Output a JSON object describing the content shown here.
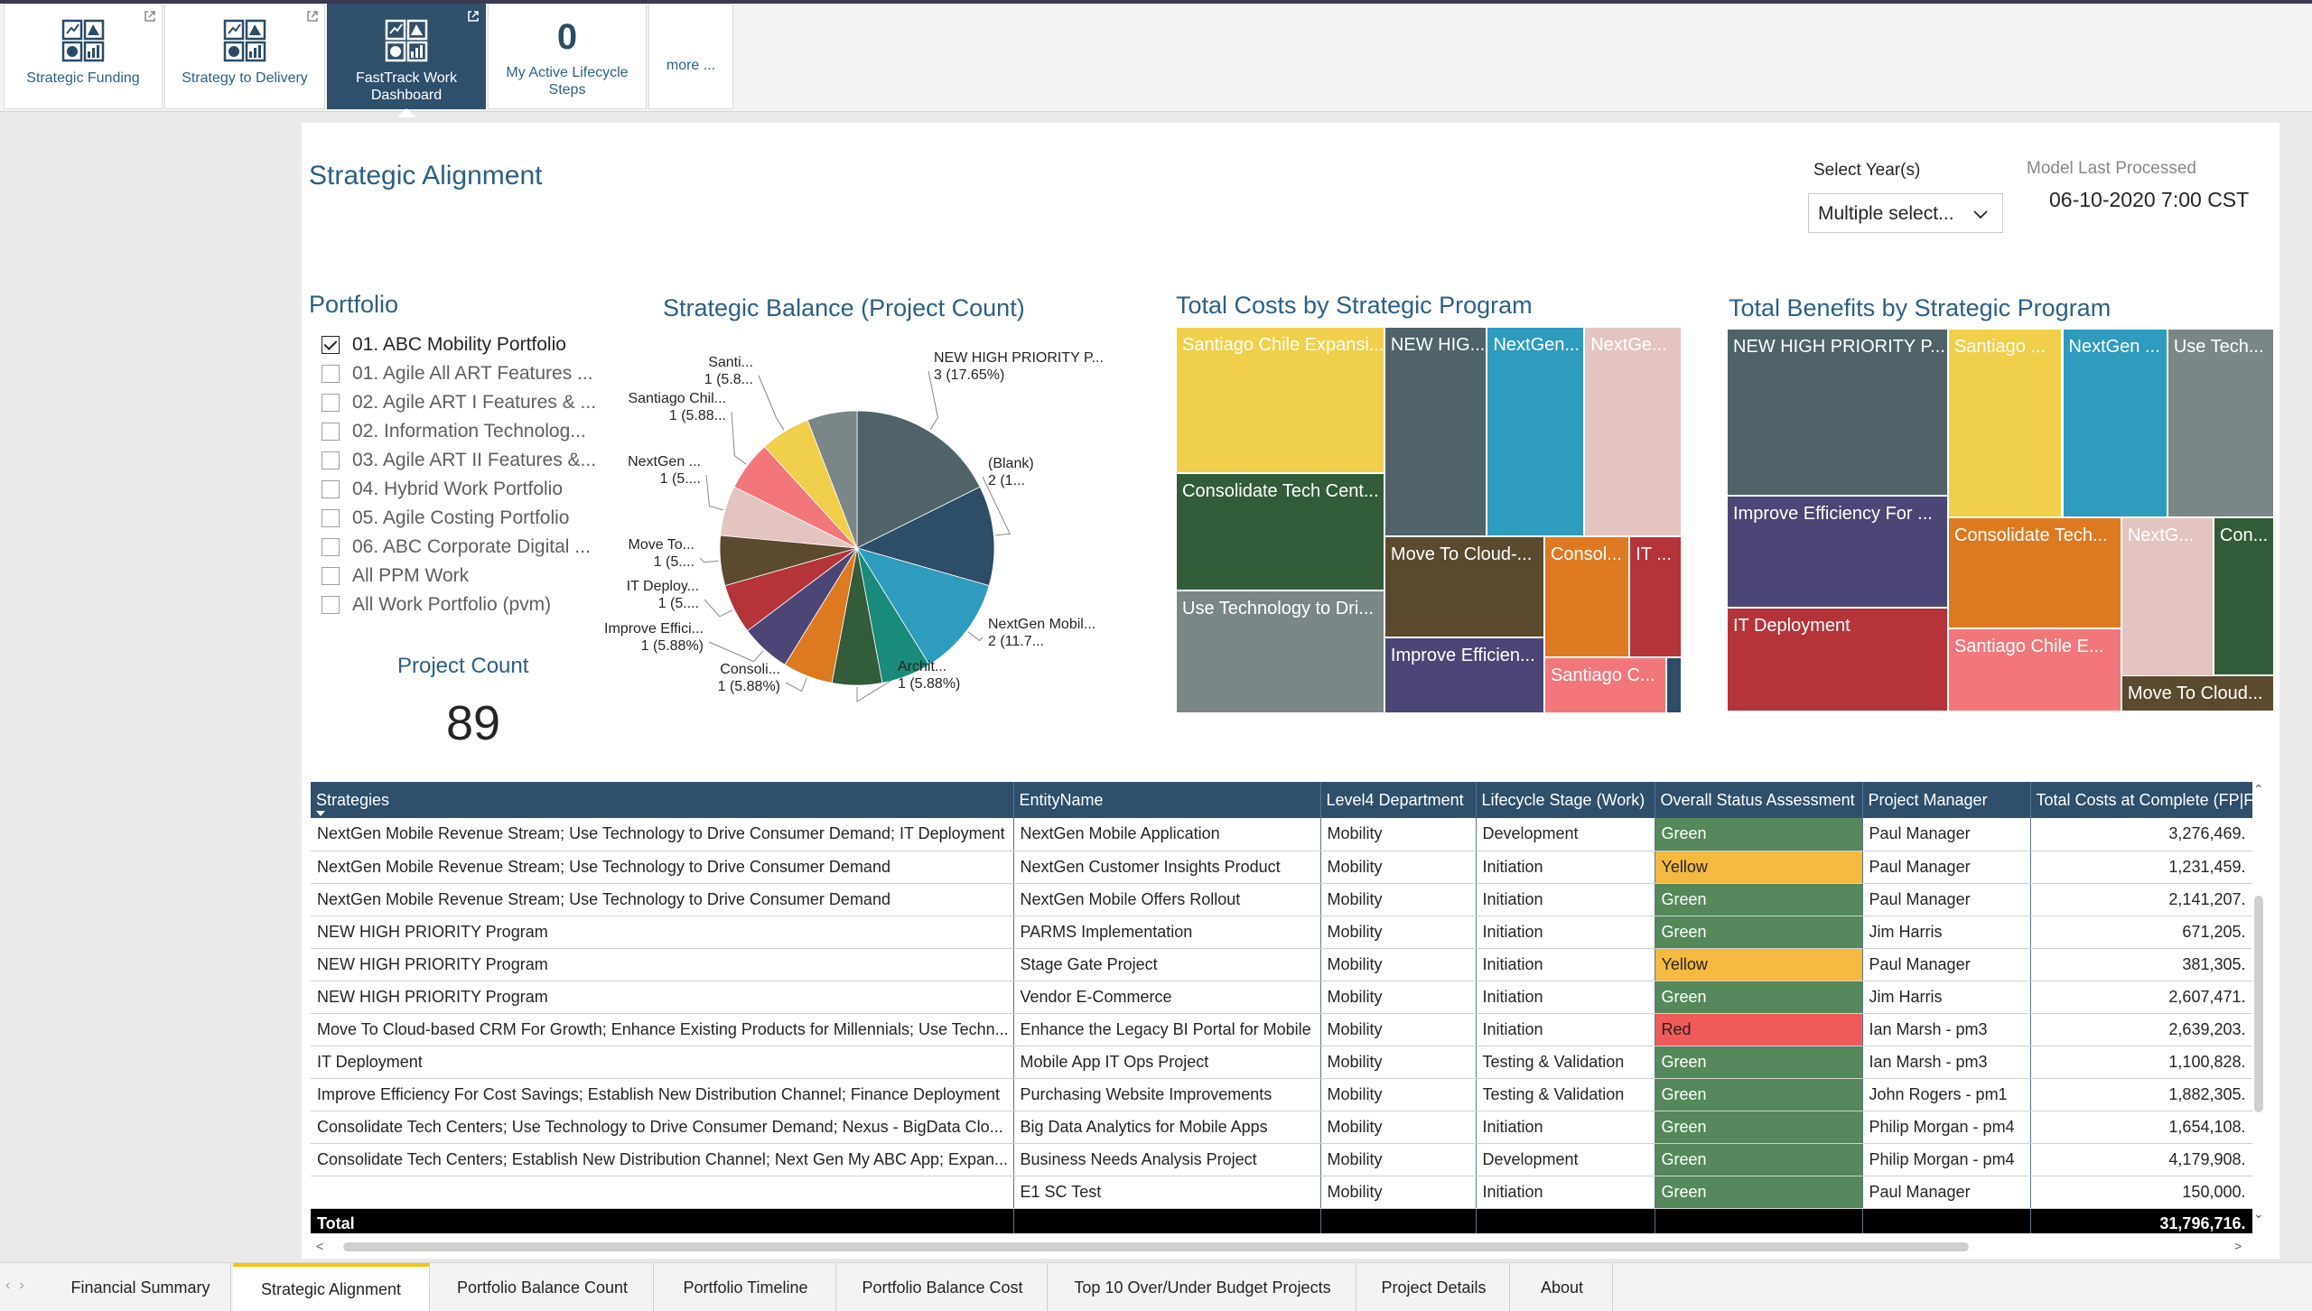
{
  "tiles": [
    {
      "label": "Strategic Funding",
      "icon": "dashboard-icon",
      "external": true
    },
    {
      "label": "Strategy to Delivery",
      "icon": "dashboard-icon",
      "external": true
    },
    {
      "label": "FastTrack Work Dashboard",
      "icon": "dashboard-icon",
      "external": true,
      "active": true
    },
    {
      "count": "0",
      "label": "My Active Lifecycle Steps"
    },
    {
      "label": "more ..."
    }
  ],
  "report": {
    "title": "Strategic Alignment",
    "year_label": "Select Year(s)",
    "year_value": "Multiple select...",
    "model_label": "Model Last Processed",
    "model_value": "06-10-2020 7:00 CST"
  },
  "portfolio": {
    "title": "Portfolio",
    "items": [
      {
        "label": "01. ABC Mobility Portfolio",
        "checked": true
      },
      {
        "label": "01. Agile All ART Features ...",
        "checked": false
      },
      {
        "label": "02. Agile ART I Features & ...",
        "checked": false
      },
      {
        "label": "02. Information Technolog...",
        "checked": false
      },
      {
        "label": "03. Agile ART II Features &...",
        "checked": false
      },
      {
        "label": "04. Hybrid Work Portfolio",
        "checked": false
      },
      {
        "label": "05. Agile Costing Portfolio",
        "checked": false
      },
      {
        "label": "06. ABC Corporate Digital ...",
        "checked": false
      },
      {
        "label": "All PPM Work",
        "checked": false
      },
      {
        "label": "All Work Portfolio (pvm)",
        "checked": false
      }
    ]
  },
  "project_count": {
    "title": "Project Count",
    "value": "89"
  },
  "chart_data": [
    {
      "type": "pie",
      "title": "Strategic Balance (Project Count)",
      "slices": [
        {
          "label": "NEW HIGH PRIORITY P...",
          "value": 3,
          "pct": "17.65%",
          "text": "3 (17.65%)",
          "color": "#4f6368"
        },
        {
          "label": "(Blank)",
          "value": 2,
          "text": "2 (1...",
          "color": "#2e4d66"
        },
        {
          "label": "NextGen Mobil...",
          "value": 2,
          "text": "2 (11.7...",
          "color": "#2f9bbf"
        },
        {
          "label": "",
          "value": 1,
          "color": "#1a8a7a"
        },
        {
          "label": "Archit...",
          "value": 1,
          "text": "1 (5.88%)",
          "color": "#335c3a"
        },
        {
          "label": "Consoli...",
          "value": 1,
          "text": "1 (5.88%)",
          "color": "#dd7a21"
        },
        {
          "label": "Improve Effici...",
          "value": 1,
          "text": "1 (5.88%)",
          "color": "#4b4675"
        },
        {
          "label": "IT Deploy...",
          "value": 1,
          "text": "1 (5....",
          "color": "#b4343a"
        },
        {
          "label": "Move To...",
          "value": 1,
          "text": "1 (5....",
          "color": "#5a4a30"
        },
        {
          "label": "NextGen ...",
          "value": 1,
          "text": "1 (5....",
          "color": "#e2c4c0"
        },
        {
          "label": "Santiago Chil...",
          "value": 1,
          "text": "1 (5.88...",
          "color": "#f2777a"
        },
        {
          "label": "Santi...",
          "value": 1,
          "text": "1 (5.8...",
          "color": "#f1cf4b"
        },
        {
          "label": "",
          "value": 1,
          "color": "#7b8687"
        }
      ]
    },
    {
      "type": "treemap",
      "title": "Total Costs by Strategic Program",
      "cells": [
        {
          "label": "Santiago Chile Expansi...",
          "color": "#f1cf4b"
        },
        {
          "label": "NEW HIG...",
          "color": "#4f6368"
        },
        {
          "label": "NextGen...",
          "color": "#2f9bbf"
        },
        {
          "label": "NextGe...",
          "color": "#e2c4c0"
        },
        {
          "label": "Consolidate Tech Cent...",
          "color": "#335c3a"
        },
        {
          "label": "Move To Cloud-...",
          "color": "#5a4a30"
        },
        {
          "label": "Consol...",
          "color": "#dd7a21"
        },
        {
          "label": "IT ...",
          "color": "#b4343a"
        },
        {
          "label": "Use Technology to Dri...",
          "color": "#7b8687"
        },
        {
          "label": "Improve Efficien...",
          "color": "#4b4675"
        },
        {
          "label": "Santiago C...",
          "color": "#f2777a"
        },
        {
          "label": "",
          "color": "#2e4d66"
        }
      ]
    },
    {
      "type": "treemap",
      "title": "Total Benefits by Strategic Program",
      "cells": [
        {
          "label": "NEW HIGH PRIORITY P...",
          "color": "#4f6368"
        },
        {
          "label": "Santiago ...",
          "color": "#f1cf4b"
        },
        {
          "label": "NextGen ...",
          "color": "#2f9bbf"
        },
        {
          "label": "Use Tech...",
          "color": "#7b8687"
        },
        {
          "label": "Improve Efficiency For ...",
          "color": "#4b4675"
        },
        {
          "label": "Consolidate Tech...",
          "color": "#dd7a21"
        },
        {
          "label": "NextG...",
          "color": "#e2c4c0"
        },
        {
          "label": "Con...",
          "color": "#335c3a"
        },
        {
          "label": "IT Deployment",
          "color": "#b4343a"
        },
        {
          "label": "Santiago Chile E...",
          "color": "#f2777a"
        },
        {
          "label": "Move To Cloud...",
          "color": "#5a4a30"
        }
      ]
    }
  ],
  "table": {
    "headers": [
      "Strategies",
      "EntityName",
      "Level4 Department",
      "Lifecycle Stage (Work)",
      "Overall Status Assessment",
      "Project Manager",
      "Total Costs at Complete (FP|F"
    ],
    "rows": [
      [
        "NextGen Mobile Revenue Stream; Use Technology to Drive Consumer Demand; IT Deployment",
        "NextGen Mobile Application",
        "Mobility",
        "Development",
        "Green",
        "Paul Manager",
        "3,276,469."
      ],
      [
        "NextGen Mobile Revenue Stream; Use Technology to Drive Consumer Demand",
        "NextGen Customer Insights Product",
        "Mobility",
        "Initiation",
        "Yellow",
        "Paul Manager",
        "1,231,459."
      ],
      [
        "NextGen Mobile Revenue Stream; Use Technology to Drive Consumer Demand",
        "NextGen Mobile Offers Rollout",
        "Mobility",
        "Initiation",
        "Green",
        "Paul Manager",
        "2,141,207."
      ],
      [
        "NEW HIGH PRIORITY Program",
        "PARMS Implementation",
        "Mobility",
        "Initiation",
        "Green",
        "Jim Harris",
        "671,205."
      ],
      [
        "NEW HIGH PRIORITY Program",
        "Stage Gate Project",
        "Mobility",
        "Initiation",
        "Yellow",
        "Paul Manager",
        "381,305."
      ],
      [
        "NEW HIGH PRIORITY Program",
        "Vendor E-Commerce",
        "Mobility",
        "Initiation",
        "Green",
        "Jim Harris",
        "2,607,471."
      ],
      [
        "Move To Cloud-based CRM For Growth; Enhance Existing Products for Millennials; Use Techn...",
        "Enhance the Legacy BI Portal for Mobile",
        "Mobility",
        "Initiation",
        "Red",
        "Ian Marsh - pm3",
        "2,639,203."
      ],
      [
        "IT Deployment",
        "Mobile App IT Ops Project",
        "Mobility",
        "Testing & Validation",
        "Green",
        "Ian Marsh - pm3",
        "1,100,828."
      ],
      [
        "Improve Efficiency For Cost Savings; Establish New Distribution Channel; Finance Deployment",
        "Purchasing Website Improvements",
        "Mobility",
        "Testing & Validation",
        "Green",
        "John Rogers - pm1",
        "1,882,305."
      ],
      [
        "Consolidate Tech Centers; Use Technology to Drive Consumer Demand; Nexus - BigData Clo...",
        "Big Data Analytics for Mobile Apps",
        "Mobility",
        "Initiation",
        "Green",
        "Philip Morgan - pm4",
        "1,654,108."
      ],
      [
        "Consolidate Tech Centers; Establish New Distribution Channel; Next Gen My ABC App; Expan...",
        "Business Needs Analysis Project",
        "Mobility",
        "Development",
        "Green",
        "Philip Morgan - pm4",
        "4,179,908."
      ],
      [
        "",
        "E1 SC Test",
        "Mobility",
        "Initiation",
        "Green",
        "Paul Manager",
        "150,000."
      ]
    ],
    "total_label": "Total",
    "total_value": "31,796,716."
  },
  "page_tabs": [
    {
      "label": "Financial Summary"
    },
    {
      "label": "Strategic Alignment",
      "active": true
    },
    {
      "label": "Portfolio Balance Count"
    },
    {
      "label": "Portfolio Timeline"
    },
    {
      "label": "Portfolio Balance Cost"
    },
    {
      "label": "Top 10 Over/Under Budget Projects"
    },
    {
      "label": "Project Details"
    },
    {
      "label": "About"
    }
  ]
}
